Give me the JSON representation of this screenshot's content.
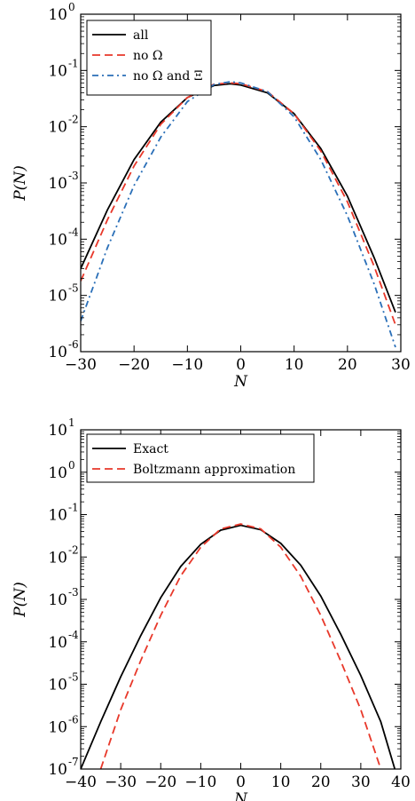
{
  "chart_data": [
    {
      "type": "line",
      "xlabel": "N",
      "ylabel": "P(N)",
      "yscale": "log",
      "xlim": [
        -30,
        30
      ],
      "ylim": [
        1e-06,
        1
      ],
      "xticks": [
        -30,
        -20,
        -10,
        0,
        10,
        20,
        30
      ],
      "xtick_labels": [
        "−30",
        "−20",
        "−10",
        "0",
        "10",
        "20",
        "30"
      ],
      "yticks": [
        {
          "value": 1e-06,
          "base": "10",
          "exp": "-6"
        },
        {
          "value": 1e-05,
          "base": "10",
          "exp": "-5"
        },
        {
          "value": 0.0001,
          "base": "10",
          "exp": "-4"
        },
        {
          "value": 0.001,
          "base": "10",
          "exp": "-3"
        },
        {
          "value": 0.01,
          "base": "10",
          "exp": "-2"
        },
        {
          "value": 0.1,
          "base": "10",
          "exp": "-1"
        },
        {
          "value": 1,
          "base": "10",
          "exp": "0"
        }
      ],
      "legend_position": "top-left",
      "grid": false,
      "series": [
        {
          "name": "all",
          "color": "#000000",
          "style": "solid",
          "x": [
            -30,
            -25,
            -20,
            -15,
            -10,
            -5,
            -2,
            0,
            5,
            10,
            15,
            20,
            25,
            29
          ],
          "y": [
            3e-05,
            0.00033,
            0.0026,
            0.012,
            0.033,
            0.054,
            0.058,
            0.055,
            0.04,
            0.017,
            0.0041,
            0.00058,
            4.7e-05,
            5e-06
          ]
        },
        {
          "name": "no Ω",
          "color": "#e8382a",
          "style": "dashed",
          "x": [
            -30,
            -25,
            -20,
            -15,
            -10,
            -5,
            -2,
            0,
            5,
            10,
            15,
            20,
            25,
            29
          ],
          "y": [
            1.8e-05,
            0.00022,
            0.002,
            0.011,
            0.033,
            0.057,
            0.06,
            0.058,
            0.042,
            0.017,
            0.0037,
            0.00046,
            3.3e-05,
            3e-06
          ]
        },
        {
          "name": "no Ω and Ξ",
          "color": "#2a6fb8",
          "style": "dashdot",
          "x": [
            -30,
            -25,
            -20,
            -15,
            -10,
            -5,
            -2,
            0,
            5,
            10,
            15,
            20,
            25,
            29
          ],
          "y": [
            3.5e-06,
            7e-05,
            0.0009,
            0.0065,
            0.028,
            0.056,
            0.063,
            0.06,
            0.042,
            0.015,
            0.0026,
            0.00026,
            1.6e-05,
            1.2e-06
          ]
        }
      ]
    },
    {
      "type": "line",
      "xlabel": "N",
      "ylabel": "P(N)",
      "yscale": "log",
      "xlim": [
        -40,
        40
      ],
      "ylim": [
        1e-07,
        10
      ],
      "xticks": [
        -40,
        -30,
        -20,
        -10,
        0,
        10,
        20,
        30,
        40
      ],
      "xtick_labels": [
        "−40",
        "−30",
        "−20",
        "−10",
        "0",
        "10",
        "20",
        "30",
        "40"
      ],
      "yticks": [
        {
          "value": 1e-07,
          "base": "10",
          "exp": "-7"
        },
        {
          "value": 1e-06,
          "base": "10",
          "exp": "-6"
        },
        {
          "value": 1e-05,
          "base": "10",
          "exp": "-5"
        },
        {
          "value": 0.0001,
          "base": "10",
          "exp": "-4"
        },
        {
          "value": 0.001,
          "base": "10",
          "exp": "-3"
        },
        {
          "value": 0.01,
          "base": "10",
          "exp": "-2"
        },
        {
          "value": 0.1,
          "base": "10",
          "exp": "-1"
        },
        {
          "value": 1,
          "base": "10",
          "exp": "0"
        },
        {
          "value": 10,
          "base": "10",
          "exp": "1"
        }
      ],
      "legend_position": "top-left",
      "grid": false,
      "series": [
        {
          "name": "Exact",
          "color": "#000000",
          "style": "solid",
          "x": [
            -40,
            -35,
            -30,
            -25,
            -20,
            -15,
            -10,
            -5,
            0,
            5,
            10,
            15,
            20,
            25,
            30,
            35,
            38.5
          ],
          "y": [
            1e-07,
            1.3e-06,
            1.5e-05,
            0.00014,
            0.0011,
            0.006,
            0.02,
            0.043,
            0.056,
            0.044,
            0.021,
            0.0064,
            0.0012,
            0.00015,
            1.6e-05,
            1.3e-06,
            1e-07
          ]
        },
        {
          "name": "Boltzmann approximation",
          "color": "#e8382a",
          "style": "dashed",
          "x": [
            -35,
            -30,
            -25,
            -20,
            -15,
            -10,
            -5,
            0,
            5,
            10,
            15,
            20,
            25,
            30,
            35
          ],
          "y": [
            1e-07,
            2.5e-06,
            3.6e-05,
            0.00042,
            0.0036,
            0.017,
            0.046,
            0.06,
            0.046,
            0.017,
            0.0035,
            0.00042,
            3.5e-05,
            2.5e-06,
            1e-07
          ]
        }
      ]
    }
  ]
}
